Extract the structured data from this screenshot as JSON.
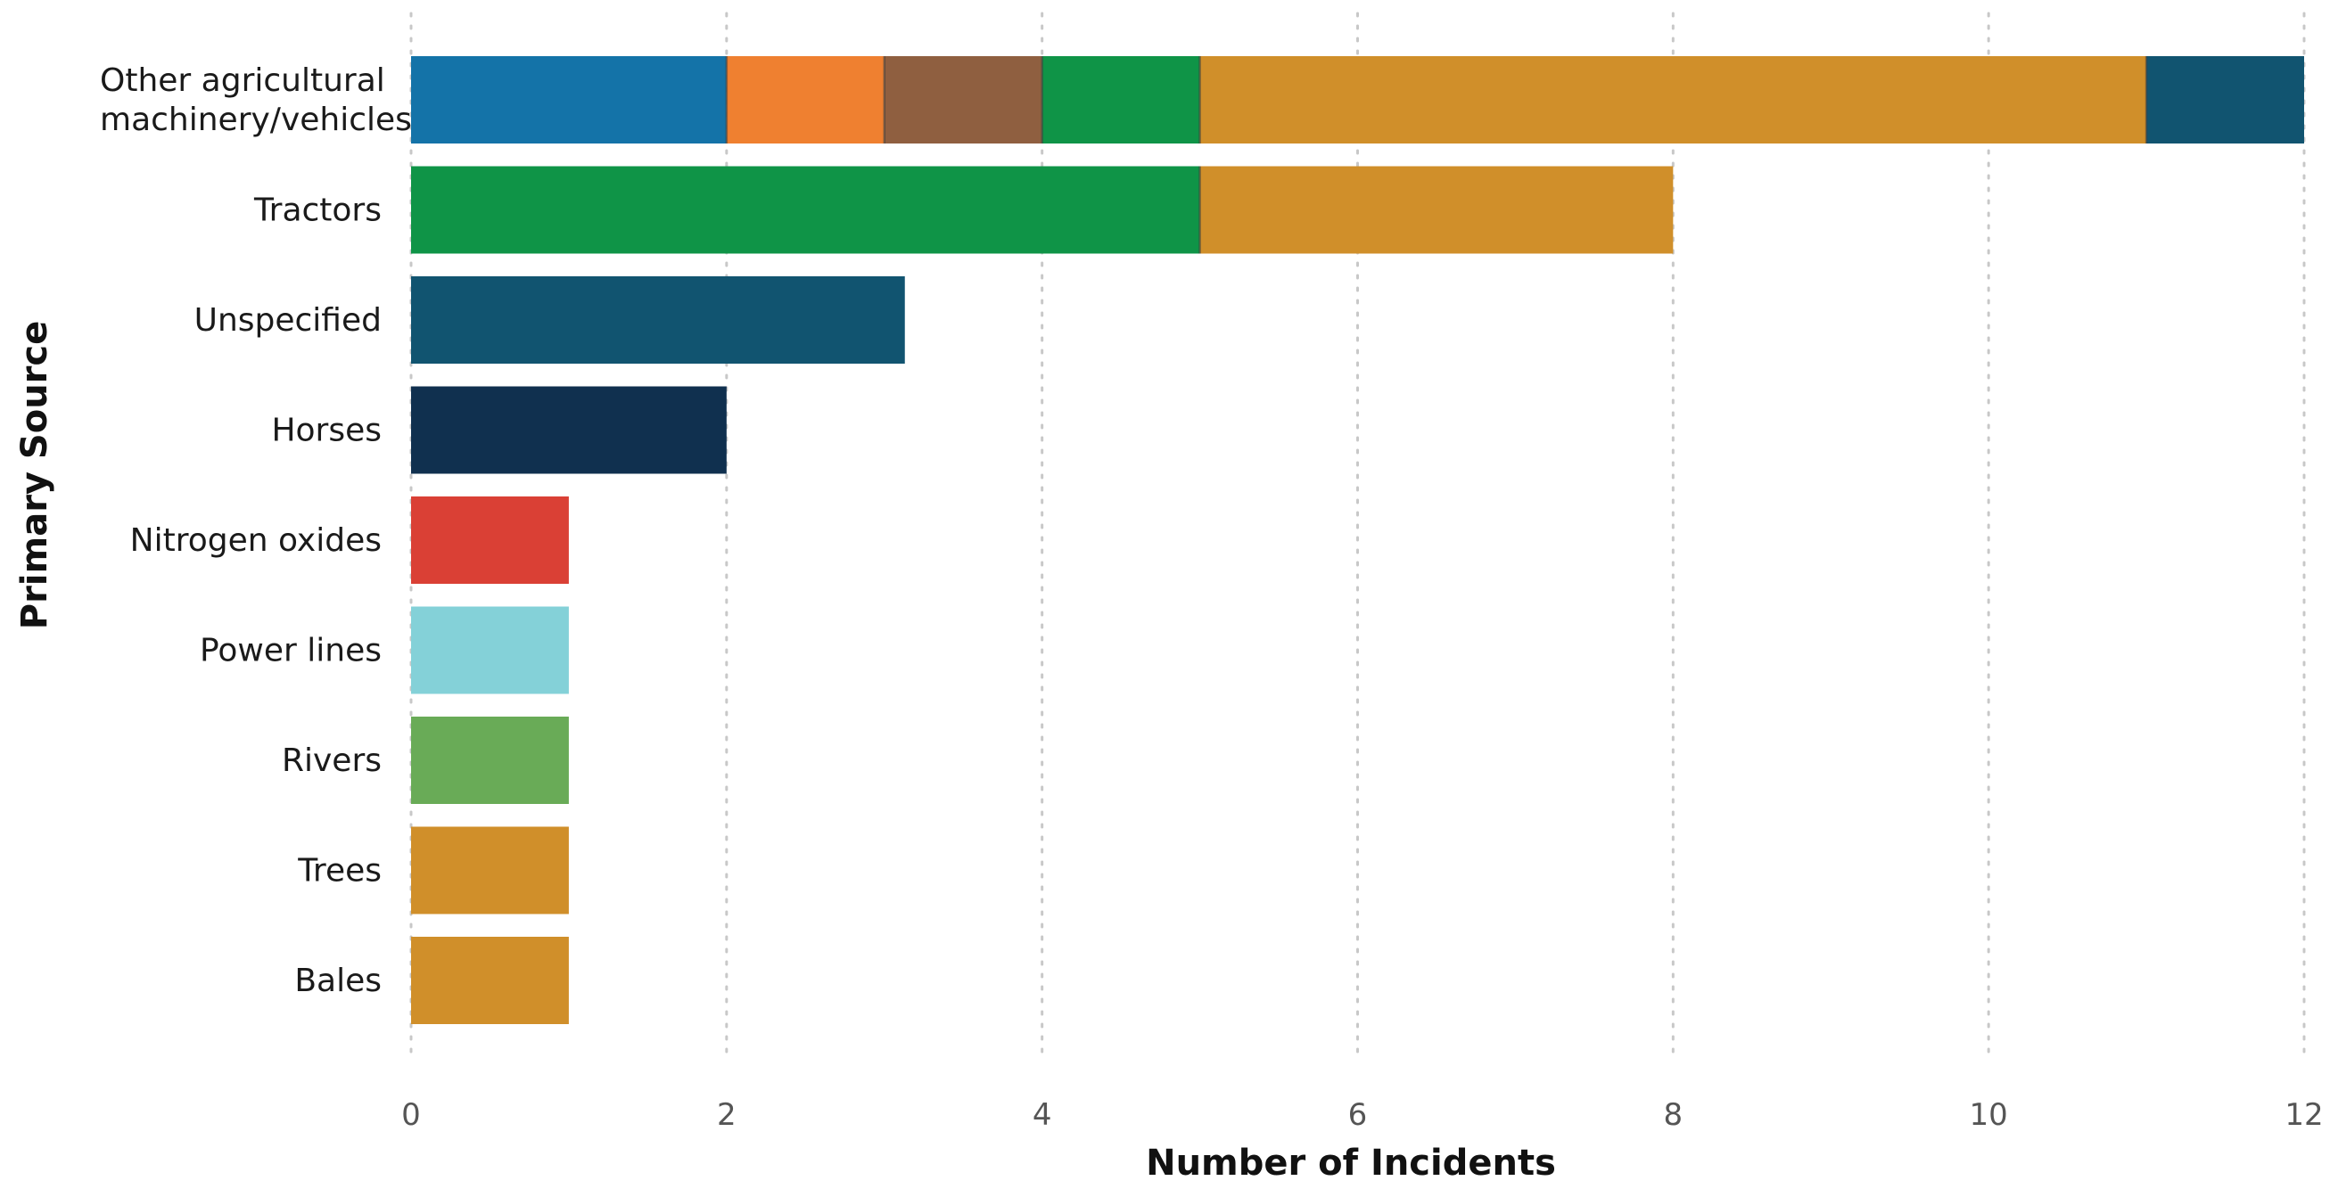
{
  "chart_data": {
    "type": "bar",
    "orientation": "horizontal",
    "stacked": true,
    "title": "",
    "xlabel": "Number of Incidents",
    "ylabel": "Primary Source",
    "xlim": [
      0,
      12
    ],
    "xticks": [
      0,
      2,
      4,
      6,
      8,
      10,
      12
    ],
    "grid": "vertical-dotted",
    "legend": "none",
    "categories": [
      [
        "Other agricultural",
        "machinery/vehicles"
      ],
      [
        "Tractors"
      ],
      [
        "Unspecified"
      ],
      [
        "Horses"
      ],
      [
        "Nitrogen oxides"
      ],
      [
        "Power lines"
      ],
      [
        "Rivers"
      ],
      [
        "Trees"
      ],
      [
        "Bales"
      ]
    ],
    "bars": [
      [
        {
          "value": 2,
          "color": "#1473a8"
        },
        {
          "value": 1,
          "color": "#ef8030"
        },
        {
          "value": 1,
          "color": "#8f5f40"
        },
        {
          "value": 1,
          "color": "#0f9447"
        },
        {
          "value": 6,
          "color": "#d08f2a"
        },
        {
          "value": 1,
          "color": "#115470"
        }
      ],
      [
        {
          "value": 5,
          "color": "#0f9447"
        },
        {
          "value": 3,
          "color": "#d08f2a"
        }
      ],
      [
        {
          "value": 3.13,
          "color": "#115470"
        }
      ],
      [
        {
          "value": 2,
          "color": "#10304f"
        }
      ],
      [
        {
          "value": 1,
          "color": "#da4035"
        }
      ],
      [
        {
          "value": 1,
          "color": "#84d1d8"
        }
      ],
      [
        {
          "value": 1,
          "color": "#69ab57"
        }
      ],
      [
        {
          "value": 1,
          "color": "#d08f2a"
        }
      ],
      [
        {
          "value": 1,
          "color": "#d08f2a"
        }
      ]
    ]
  }
}
